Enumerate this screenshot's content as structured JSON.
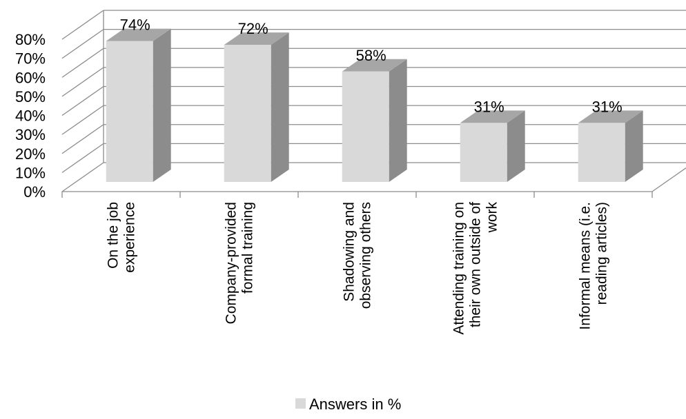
{
  "chart_data": {
    "type": "bar",
    "categories": [
      [
        "On the job",
        "experience"
      ],
      [
        "Company-provided",
        "formal training"
      ],
      [
        "Shadowing and",
        "observing others"
      ],
      [
        "Attending training on",
        "their own outside of",
        "work"
      ],
      [
        "Informal means (i.e.",
        "reading articles)"
      ]
    ],
    "values": [
      74,
      72,
      58,
      31,
      31
    ],
    "data_labels": [
      "74%",
      "72%",
      "58%",
      "31%",
      "31%"
    ],
    "yticks": [
      "0%",
      "10%",
      "20%",
      "30%",
      "40%",
      "50%",
      "60%",
      "70%",
      "80%"
    ],
    "ylim": [
      0,
      80
    ],
    "grid": true,
    "legend": {
      "position": "bottom",
      "label": "Answers in %"
    },
    "colors": {
      "bar_front": "#d9d9d9",
      "bar_side": "#8c8c8c",
      "bar_top": "#a6a6a6",
      "grid": "#8c8c8c"
    }
  }
}
